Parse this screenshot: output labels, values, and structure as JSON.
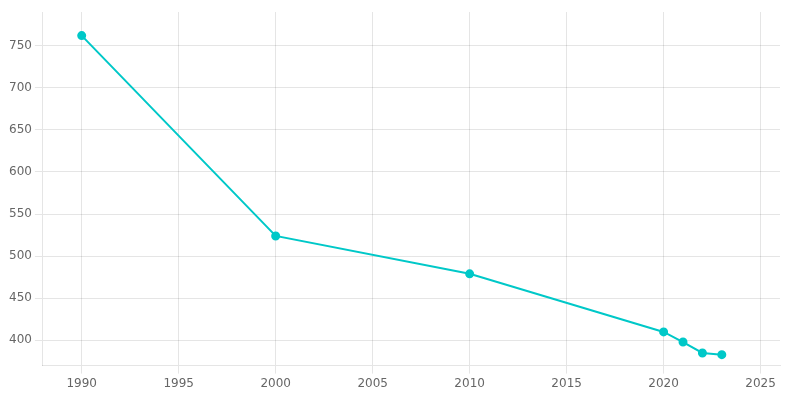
{
  "chart_data": {
    "type": "line",
    "x": [
      1990,
      2000,
      2010,
      2020,
      2021,
      2022,
      2023
    ],
    "values": [
      762,
      524,
      479,
      410,
      398,
      385,
      383
    ],
    "color": "#00c8c8",
    "marker": "circle",
    "xlim": [
      1988,
      2026
    ],
    "ylim": [
      370,
      790
    ],
    "xticks": [
      1990,
      1995,
      2000,
      2005,
      2010,
      2015,
      2020,
      2025
    ],
    "yticks": [
      400,
      450,
      500,
      550,
      600,
      650,
      700,
      750
    ],
    "grid": true
  }
}
